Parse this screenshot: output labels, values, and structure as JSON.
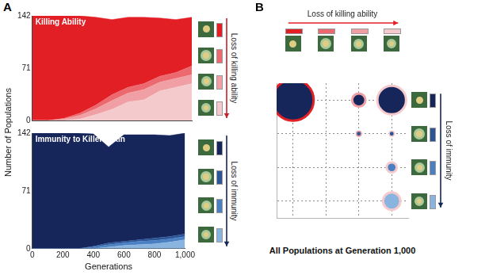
{
  "chart_data": [
    {
      "panel": "A",
      "type": "area",
      "stacked": true,
      "title": "Killing Ability",
      "ylabel": "Number of Populations",
      "annotation": "Loss of killing ability",
      "x": [
        0,
        100,
        200,
        300,
        400,
        500,
        600,
        700,
        800,
        900,
        1000
      ],
      "xlim": [
        0,
        1000
      ],
      "xticks": [
        0,
        200,
        400,
        600,
        800,
        {
          "value": 1000,
          "label": "1,000"
        }
      ],
      "ylim": [
        0,
        142
      ],
      "yticks": [
        0,
        71,
        142
      ],
      "tick_labels": "y",
      "grid": false,
      "series": [
        {
          "color": "#e31f26",
          "values": [
            142,
            142,
            139,
            132,
            119,
            102,
            95,
            90,
            79,
            72,
            66
          ]
        },
        {
          "color": "#ec6a6f",
          "values": [
            0,
            0,
            1,
            3,
            5,
            8,
            8,
            8,
            8,
            8,
            12
          ]
        },
        {
          "color": "#f0a0a4",
          "values": [
            0,
            0,
            2,
            5,
            8,
            12,
            12,
            14,
            12,
            12,
            12
          ]
        },
        {
          "color": "#f5cacc",
          "values": [
            0,
            0,
            0,
            2,
            8,
            15,
            25,
            28,
            40,
            45,
            50
          ]
        }
      ]
    },
    {
      "type": "area",
      "stacked": true,
      "title": "Immunity to Killer Toxin",
      "xlabel": "Generations",
      "annotation": "Loss of immunity",
      "x": [
        0,
        100,
        200,
        300,
        400,
        500,
        600,
        700,
        800,
        900,
        1000
      ],
      "xlim": [
        0,
        1000
      ],
      "xticks": [
        0,
        200,
        400,
        600,
        800,
        {
          "value": 1000,
          "label": "1,000"
        }
      ],
      "ylim": [
        0,
        142
      ],
      "yticks": [
        0,
        71,
        142
      ],
      "grid": false,
      "series": [
        {
          "color": "#16255a",
          "values": [
            142,
            142,
            142,
            142,
            138,
            118,
            131,
            129,
            127,
            124,
            124
          ]
        },
        {
          "color": "#2c5596",
          "values": [
            0,
            0,
            0,
            0,
            1,
            2,
            2,
            2,
            3,
            3,
            3
          ]
        },
        {
          "color": "#4a7fc1",
          "values": [
            0,
            0,
            0,
            0,
            2,
            3,
            3,
            4,
            4,
            4,
            4
          ]
        },
        {
          "color": "#8ab4e0",
          "values": [
            0,
            0,
            0,
            0,
            0,
            2,
            4,
            5,
            6,
            8,
            11
          ]
        }
      ]
    },
    {
      "panel": "B",
      "type": "bubble",
      "title": "All Populations at Generation 1,000",
      "annotations": [
        "Loss of killing ability",
        "Loss of immunity"
      ],
      "xlim": [
        -0.5,
        3.5
      ],
      "ylim": [
        -0.5,
        3.5
      ],
      "xticks": [
        0,
        1,
        2,
        3
      ],
      "yticks": [
        0,
        1,
        2,
        3
      ],
      "tick_labels": false,
      "grid": true,
      "points": [
        {
          "x": 0,
          "y": 3,
          "count": 68
        },
        {
          "x": 2,
          "y": 3,
          "count": 7
        },
        {
          "x": 3,
          "y": 3,
          "count": 33
        },
        {
          "x": 2,
          "y": 2,
          "count": 1
        },
        {
          "x": 3,
          "y": 2,
          "count": 1
        },
        {
          "x": 3,
          "y": 1,
          "count": 4
        },
        {
          "x": 3,
          "y": 0,
          "count": 12
        }
      ]
    }
  ]
}
